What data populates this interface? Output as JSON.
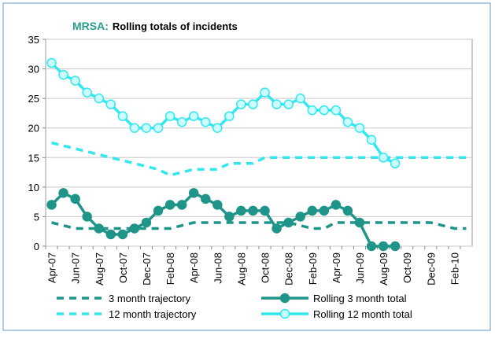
{
  "chart_data": {
    "type": "line",
    "title_lead": "MRSA:",
    "title": "Rolling totals of incidents",
    "title_lead_color": "#2a9d8f",
    "categories": [
      "Apr-07",
      null,
      "Jun-07",
      null,
      "Aug-07",
      null,
      "Oct-07",
      null,
      "Dec-07",
      null,
      "Feb-08",
      null,
      "Apr-08",
      null,
      "Jun-08",
      null,
      "Aug-08",
      null,
      "Oct-08",
      null,
      "Dec-08",
      null,
      "Feb-09",
      null,
      "Apr-09",
      null,
      "Jun-09",
      null,
      "Aug-09",
      null,
      "Oct-09",
      null,
      "Dec-09",
      null,
      "Feb-10",
      null
    ],
    "ylim": [
      0,
      35
    ],
    "yticks": [
      0,
      5,
      10,
      15,
      20,
      25,
      30,
      35
    ],
    "grid": true,
    "series": [
      {
        "name": "3 month trajectory",
        "color": "#1f9488",
        "dashed": true,
        "marker": false,
        "values": [
          4,
          3.5,
          3,
          3,
          3,
          3,
          3,
          3,
          3,
          3,
          3,
          3.5,
          4,
          4,
          4,
          4,
          4,
          4,
          4,
          4,
          4,
          3.5,
          3,
          3,
          4,
          4,
          4,
          4,
          4,
          4,
          4,
          4,
          4,
          3.5,
          3,
          3
        ]
      },
      {
        "name": "Rolling 3 month total",
        "color": "#1f9488",
        "dashed": false,
        "marker": true,
        "marker_fill": "#1f9488",
        "values": [
          7,
          9,
          8,
          5,
          3,
          2,
          2,
          3,
          4,
          6,
          7,
          7,
          9,
          8,
          7,
          5,
          6,
          6,
          6,
          3,
          4,
          5,
          6,
          6,
          7,
          6,
          4,
          0,
          0,
          0,
          null,
          null,
          null,
          null,
          null,
          null
        ]
      },
      {
        "name": "12 month trajectory",
        "color": "#33e6f0",
        "dashed": true,
        "marker": false,
        "values": [
          17.5,
          17,
          16.5,
          16,
          15.5,
          15,
          14.5,
          14,
          13.5,
          13,
          12,
          12.5,
          13,
          13,
          13,
          14,
          14,
          14,
          15,
          15,
          15,
          15,
          15,
          15,
          15,
          15,
          15,
          15,
          15,
          15,
          15,
          15,
          15,
          15,
          15,
          15
        ]
      },
      {
        "name": "Rolling 12 month total",
        "color": "#33e6f0",
        "dashed": false,
        "marker": true,
        "marker_fill": "#ccffff",
        "values": [
          31,
          29,
          28,
          26,
          25,
          24,
          22,
          20,
          20,
          20,
          22,
          21,
          22,
          21,
          20,
          22,
          24,
          24,
          26,
          24,
          24,
          25,
          23,
          23,
          23,
          21,
          20,
          18,
          15,
          14,
          null,
          null,
          null,
          null,
          null,
          null
        ]
      }
    ]
  }
}
